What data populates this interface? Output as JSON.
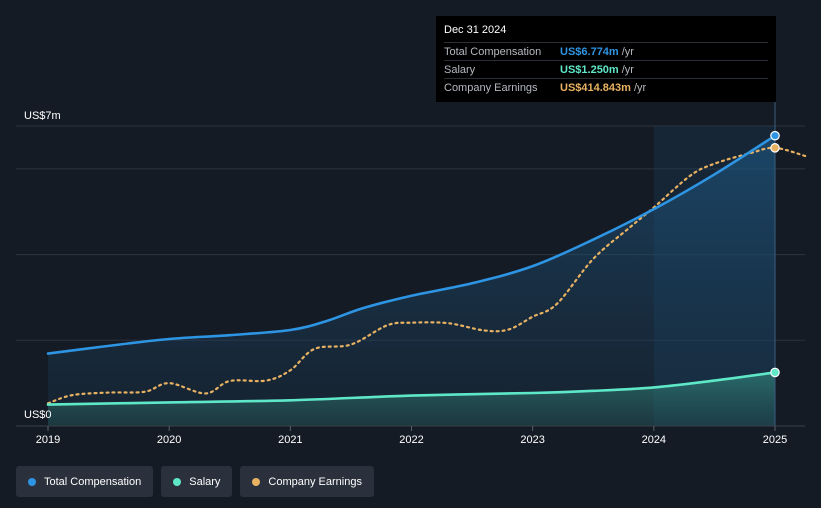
{
  "chart_data": {
    "type": "line",
    "y_axis": {
      "top_label": "US$7m",
      "bottom_label": "US$0",
      "ylim": [
        0,
        7
      ]
    },
    "x_ticks": [
      "2019",
      "2020",
      "2021",
      "2022",
      "2023",
      "2024",
      "2025"
    ],
    "xlim": [
      2019,
      2025.25
    ],
    "series": [
      {
        "name": "Total Compensation",
        "key": "total",
        "color": "#2d95e3",
        "x": [
          2019.0,
          2019.5,
          2020.0,
          2020.5,
          2021.0,
          2021.3,
          2021.6,
          2022.0,
          2022.5,
          2023.0,
          2023.5,
          2024.0,
          2024.5,
          2025.0
        ],
        "y": [
          1.69,
          1.87,
          2.03,
          2.12,
          2.24,
          2.45,
          2.75,
          3.04,
          3.33,
          3.73,
          4.35,
          5.06,
          5.87,
          6.774
        ]
      },
      {
        "name": "Salary",
        "key": "salary",
        "color": "#5ee8c8",
        "x": [
          2019.0,
          2020.0,
          2021.0,
          2022.0,
          2023.0,
          2023.5,
          2024.0,
          2024.5,
          2025.0
        ],
        "y": [
          0.5,
          0.55,
          0.6,
          0.71,
          0.77,
          0.82,
          0.9,
          1.06,
          1.25
        ]
      },
      {
        "name": "Company Earnings",
        "key": "earnings",
        "color": "#e9b262",
        "x": [
          2019.0,
          2019.2,
          2019.5,
          2019.8,
          2020.0,
          2020.3,
          2020.5,
          2020.8,
          2021.0,
          2021.2,
          2021.5,
          2021.8,
          2022.0,
          2022.3,
          2022.6,
          2022.8,
          2023.0,
          2023.2,
          2023.5,
          2023.8,
          2024.0,
          2024.3,
          2024.5,
          2024.8,
          2025.0,
          2025.25
        ],
        "y": [
          0.53,
          0.72,
          0.78,
          0.8,
          1.0,
          0.76,
          1.05,
          1.06,
          1.3,
          1.8,
          1.9,
          2.35,
          2.41,
          2.4,
          2.23,
          2.25,
          2.55,
          2.85,
          3.9,
          4.63,
          5.1,
          5.84,
          6.12,
          6.37,
          6.49,
          6.3
        ]
      }
    ],
    "forecast_region_start": 2024.0
  },
  "tooltip": {
    "date": "Dec 31 2024",
    "rows": [
      {
        "label": "Total Compensation",
        "value": "US$6.774m",
        "unit": "/yr",
        "color": "#2d95e3"
      },
      {
        "label": "Salary",
        "value": "US$1.250m",
        "unit": "/yr",
        "color": "#5ee8c8"
      },
      {
        "label": "Company Earnings",
        "value": "US$414.843m",
        "unit": "/yr",
        "color": "#e9b262"
      }
    ]
  },
  "legend": [
    {
      "label": "Total Compensation",
      "color": "#2d95e3"
    },
    {
      "label": "Salary",
      "color": "#5ee8c8"
    },
    {
      "label": "Company Earnings",
      "color": "#e9b262"
    }
  ]
}
